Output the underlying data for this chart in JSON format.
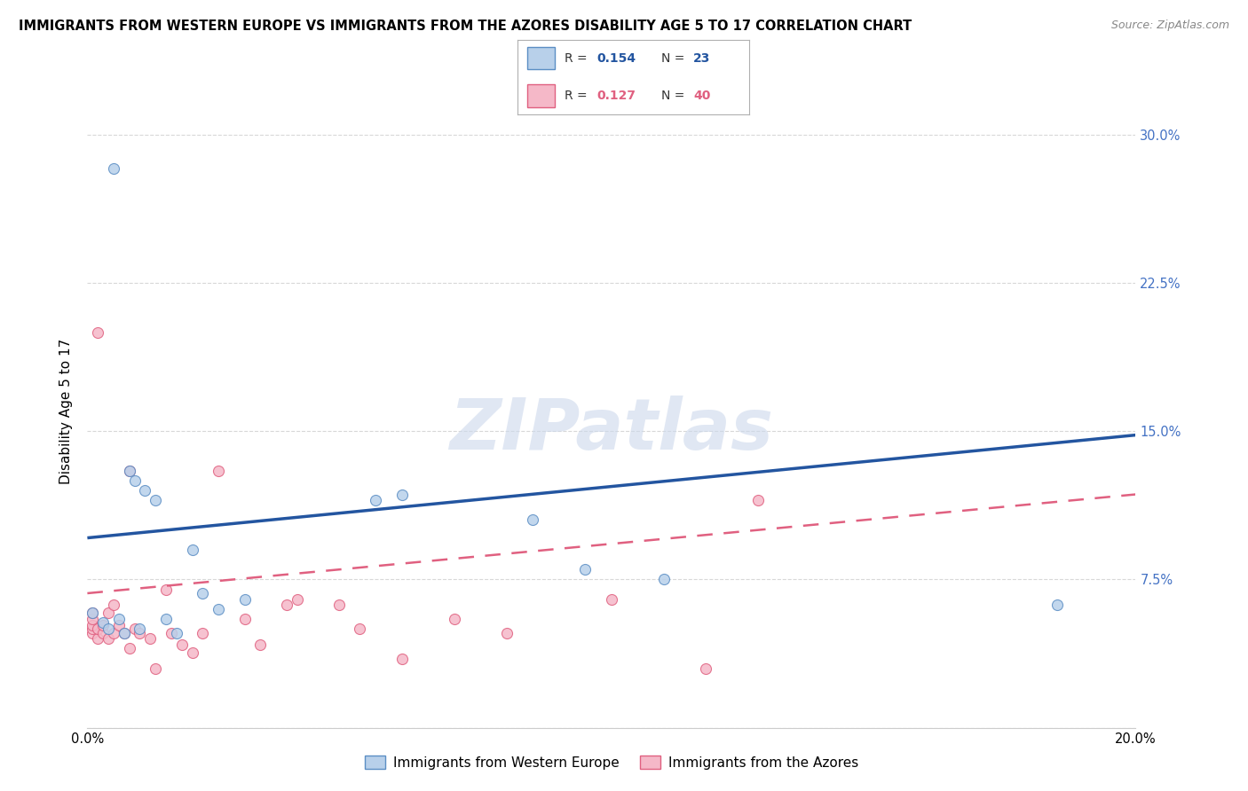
{
  "title": "IMMIGRANTS FROM WESTERN EUROPE VS IMMIGRANTS FROM THE AZORES DISABILITY AGE 5 TO 17 CORRELATION CHART",
  "source": "Source: ZipAtlas.com",
  "ylabel": "Disability Age 5 to 17",
  "xlim": [
    0.0,
    0.2
  ],
  "ylim": [
    0.0,
    0.32
  ],
  "yticks": [
    0.0,
    0.075,
    0.15,
    0.225,
    0.3
  ],
  "xticks": [
    0.0,
    0.05,
    0.1,
    0.15,
    0.2
  ],
  "grid_color": "#d8d8d8",
  "background_color": "#ffffff",
  "watermark_text": "ZIPatlas",
  "series1_color": "#b8d0ea",
  "series1_edge_color": "#5b8ec4",
  "series2_color": "#f5b8c8",
  "series2_edge_color": "#e06080",
  "series1_label": "Immigrants from Western Europe",
  "series2_label": "Immigrants from the Azores",
  "series1_R": "0.154",
  "series1_N": "23",
  "series2_R": "0.127",
  "series2_N": "40",
  "series1_line_color": "#2355a0",
  "series2_line_color": "#e06080",
  "tick_color_right": "#4472c4",
  "title_fontsize": 10.5,
  "axis_label_fontsize": 11,
  "tick_fontsize": 10.5,
  "marker_size": 75,
  "western_europe_x": [
    0.001,
    0.003,
    0.004,
    0.005,
    0.006,
    0.007,
    0.008,
    0.009,
    0.01,
    0.011,
    0.013,
    0.015,
    0.017,
    0.02,
    0.022,
    0.025,
    0.03,
    0.055,
    0.06,
    0.085,
    0.095,
    0.11,
    0.185
  ],
  "western_europe_y": [
    0.058,
    0.053,
    0.05,
    0.283,
    0.055,
    0.048,
    0.13,
    0.125,
    0.05,
    0.12,
    0.115,
    0.055,
    0.048,
    0.09,
    0.068,
    0.06,
    0.065,
    0.115,
    0.118,
    0.105,
    0.08,
    0.075,
    0.062
  ],
  "azores_x": [
    0.001,
    0.001,
    0.001,
    0.001,
    0.001,
    0.002,
    0.002,
    0.002,
    0.003,
    0.003,
    0.004,
    0.004,
    0.005,
    0.005,
    0.006,
    0.007,
    0.008,
    0.008,
    0.009,
    0.01,
    0.012,
    0.013,
    0.015,
    0.016,
    0.018,
    0.02,
    0.022,
    0.025,
    0.03,
    0.033,
    0.038,
    0.04,
    0.048,
    0.052,
    0.06,
    0.07,
    0.08,
    0.1,
    0.118,
    0.128
  ],
  "azores_y": [
    0.048,
    0.05,
    0.052,
    0.055,
    0.058,
    0.045,
    0.05,
    0.2,
    0.048,
    0.052,
    0.045,
    0.058,
    0.048,
    0.062,
    0.052,
    0.048,
    0.04,
    0.13,
    0.05,
    0.048,
    0.045,
    0.03,
    0.07,
    0.048,
    0.042,
    0.038,
    0.048,
    0.13,
    0.055,
    0.042,
    0.062,
    0.065,
    0.062,
    0.05,
    0.035,
    0.055,
    0.048,
    0.065,
    0.03,
    0.115
  ],
  "we_line_x": [
    0.0,
    0.2
  ],
  "we_line_y": [
    0.096,
    0.148
  ],
  "az_line_x": [
    0.0,
    0.2
  ],
  "az_line_y": [
    0.068,
    0.118
  ]
}
